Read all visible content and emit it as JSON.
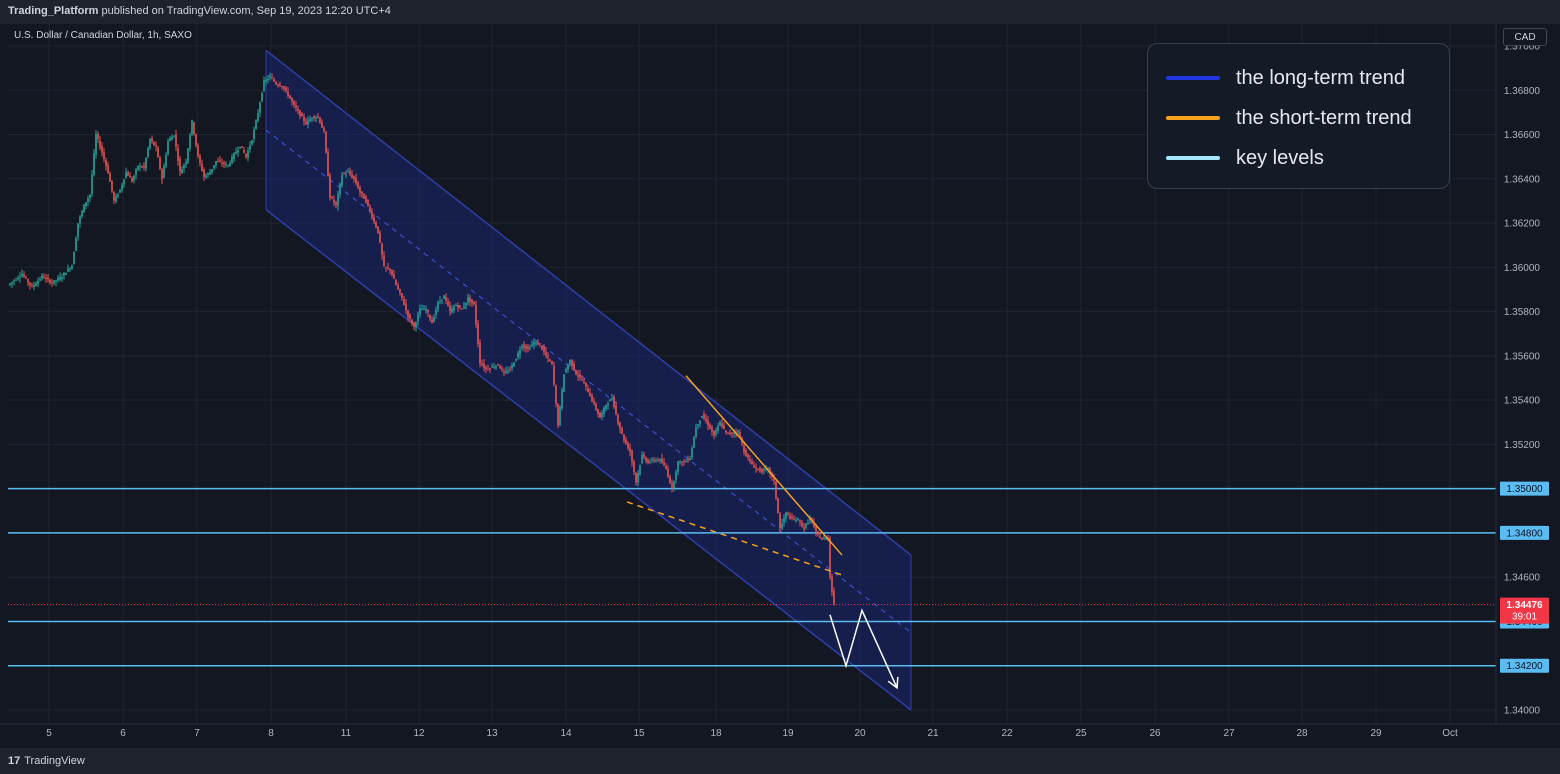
{
  "header": {
    "author": "Trading_Platform",
    "published": "published on TradingView.com, Sep 19, 2023 12:20 UTC+4"
  },
  "symbol_label": "U.S. Dollar / Canadian Dollar, 1h, SAXO",
  "currency_button": "CAD",
  "footer": {
    "logo_icon": "tradingview-logo-icon",
    "brand": "TradingView"
  },
  "legend": [
    {
      "label": "the long-term trend",
      "color": "#2036e0"
    },
    {
      "label": "the short-term trend",
      "color": "#f7a21b"
    },
    {
      "label": "key levels",
      "color": "#a6e6ff"
    }
  ],
  "colors": {
    "up": "#26a69a",
    "down": "#ef5350",
    "channel_border": "#2e3ea8",
    "channel_fill": "#1a2470",
    "key_level": "#5bbcf2",
    "short_trend": "#f7a21b",
    "price_tag": "#f23645"
  },
  "chart_data": {
    "type": "candlestick",
    "x_ticks": [
      "5",
      "6",
      "7",
      "8",
      "11",
      "12",
      "13",
      "14",
      "15",
      "18",
      "19",
      "20",
      "21",
      "22",
      "25",
      "26",
      "27",
      "28",
      "29",
      "Oct"
    ],
    "y_ticks": [
      "1.37000",
      "1.36800",
      "1.36600",
      "1.36400",
      "1.36200",
      "1.36000",
      "1.35800",
      "1.35600",
      "1.35400",
      "1.35200",
      "1.35000",
      "1.34800",
      "1.34600",
      "1.34400",
      "1.34200",
      "1.34000"
    ],
    "ylim": [
      1.3394,
      1.3708
    ],
    "candle_path": [
      [
        0,
        1.3592
      ],
      [
        14,
        1.3597
      ],
      [
        24,
        1.3591
      ],
      [
        34,
        1.3596
      ],
      [
        44,
        1.3593
      ],
      [
        54,
        1.3596
      ],
      [
        64,
        1.3601
      ],
      [
        70,
        1.362
      ],
      [
        76,
        1.3628
      ],
      [
        82,
        1.3633
      ],
      [
        88,
        1.366
      ],
      [
        94,
        1.3652
      ],
      [
        100,
        1.3643
      ],
      [
        106,
        1.363
      ],
      [
        112,
        1.3635
      ],
      [
        118,
        1.3643
      ],
      [
        124,
        1.3639
      ],
      [
        130,
        1.3646
      ],
      [
        136,
        1.3645
      ],
      [
        142,
        1.3658
      ],
      [
        148,
        1.3654
      ],
      [
        154,
        1.364
      ],
      [
        160,
        1.3657
      ],
      [
        166,
        1.366
      ],
      [
        172,
        1.3643
      ],
      [
        178,
        1.3648
      ],
      [
        184,
        1.3666
      ],
      [
        190,
        1.365
      ],
      [
        196,
        1.3641
      ],
      [
        202,
        1.3643
      ],
      [
        208,
        1.3648
      ],
      [
        214,
        1.3647
      ],
      [
        220,
        1.3646
      ],
      [
        226,
        1.3651
      ],
      [
        232,
        1.3655
      ],
      [
        238,
        1.365
      ],
      [
        244,
        1.3658
      ],
      [
        250,
        1.367
      ],
      [
        256,
        1.3684
      ],
      [
        262,
        1.3686
      ],
      [
        268,
        1.3683
      ],
      [
        274,
        1.3682
      ],
      [
        280,
        1.3678
      ],
      [
        286,
        1.3673
      ],
      [
        292,
        1.3669
      ],
      [
        298,
        1.3665
      ],
      [
        304,
        1.3668
      ],
      [
        310,
        1.3668
      ],
      [
        316,
        1.3661
      ],
      [
        322,
        1.3632
      ],
      [
        328,
        1.3628
      ],
      [
        334,
        1.3642
      ],
      [
        340,
        1.3643
      ],
      [
        346,
        1.364
      ],
      [
        352,
        1.3634
      ],
      [
        358,
        1.363
      ],
      [
        364,
        1.3623
      ],
      [
        370,
        1.3616
      ],
      [
        376,
        1.36
      ],
      [
        382,
        1.3599
      ],
      [
        388,
        1.3592
      ],
      [
        394,
        1.3586
      ],
      [
        400,
        1.3578
      ],
      [
        406,
        1.3573
      ],
      [
        412,
        1.3581
      ],
      [
        418,
        1.3581
      ],
      [
        424,
        1.3575
      ],
      [
        430,
        1.3584
      ],
      [
        436,
        1.3587
      ],
      [
        442,
        1.358
      ],
      [
        448,
        1.3583
      ],
      [
        454,
        1.3581
      ],
      [
        460,
        1.3586
      ],
      [
        466,
        1.3583
      ],
      [
        472,
        1.3557
      ],
      [
        478,
        1.3554
      ],
      [
        484,
        1.3555
      ],
      [
        490,
        1.3556
      ],
      [
        496,
        1.3552
      ],
      [
        502,
        1.3554
      ],
      [
        508,
        1.3559
      ],
      [
        514,
        1.3565
      ],
      [
        520,
        1.3563
      ],
      [
        526,
        1.3566
      ],
      [
        532,
        1.3565
      ],
      [
        538,
        1.356
      ],
      [
        544,
        1.3556
      ],
      [
        550,
        1.3529
      ],
      [
        556,
        1.3552
      ],
      [
        562,
        1.3558
      ],
      [
        568,
        1.3552
      ],
      [
        574,
        1.3549
      ],
      [
        580,
        1.3544
      ],
      [
        586,
        1.3538
      ],
      [
        592,
        1.3532
      ],
      [
        598,
        1.3538
      ],
      [
        604,
        1.3541
      ],
      [
        610,
        1.353
      ],
      [
        616,
        1.3522
      ],
      [
        622,
        1.3517
      ],
      [
        628,
        1.3503
      ],
      [
        634,
        1.3515
      ],
      [
        640,
        1.3512
      ],
      [
        646,
        1.3513
      ],
      [
        652,
        1.3513
      ],
      [
        658,
        1.3509
      ],
      [
        664,
        1.35
      ],
      [
        670,
        1.3512
      ],
      [
        676,
        1.3512
      ],
      [
        682,
        1.3514
      ],
      [
        688,
        1.3528
      ],
      [
        694,
        1.3533
      ],
      [
        700,
        1.3529
      ],
      [
        706,
        1.3524
      ],
      [
        712,
        1.353
      ],
      [
        718,
        1.3525
      ],
      [
        724,
        1.3525
      ],
      [
        730,
        1.3526
      ],
      [
        736,
        1.3517
      ],
      [
        742,
        1.3512
      ],
      [
        748,
        1.3509
      ],
      [
        754,
        1.3508
      ],
      [
        760,
        1.3509
      ],
      [
        766,
        1.3503
      ],
      [
        772,
        1.3482
      ],
      [
        778,
        1.3489
      ],
      [
        784,
        1.3486
      ],
      [
        790,
        1.3486
      ],
      [
        796,
        1.3482
      ],
      [
        802,
        1.3487
      ],
      [
        808,
        1.348
      ],
      [
        814,
        1.3477
      ],
      [
        820,
        1.3478
      ],
      [
        822,
        1.346
      ],
      [
        826,
        1.3448
      ]
    ],
    "long_term_channel": {
      "upper": [
        [
          260,
          1.3698
        ],
        [
          905,
          1.347
        ]
      ],
      "lower": [
        [
          260,
          1.3626
        ],
        [
          905,
          1.34
        ]
      ],
      "middle": [
        [
          260,
          1.3662
        ],
        [
          905,
          1.3435
        ]
      ]
    },
    "short_term_trend": {
      "resistance": [
        [
          686,
          1.3551
        ],
        [
          842,
          1.347
        ]
      ],
      "support": [
        [
          627,
          1.3494
        ],
        [
          842,
          1.3461
        ]
      ]
    },
    "key_levels": [
      "1.35000",
      "1.34800",
      "1.34400",
      "1.34200"
    ],
    "projection": [
      [
        830,
        1.3443
      ],
      [
        846,
        1.342
      ],
      [
        862,
        1.3445
      ],
      [
        897,
        1.341
      ]
    ],
    "last_price": "1.34476",
    "countdown": "39:01"
  }
}
